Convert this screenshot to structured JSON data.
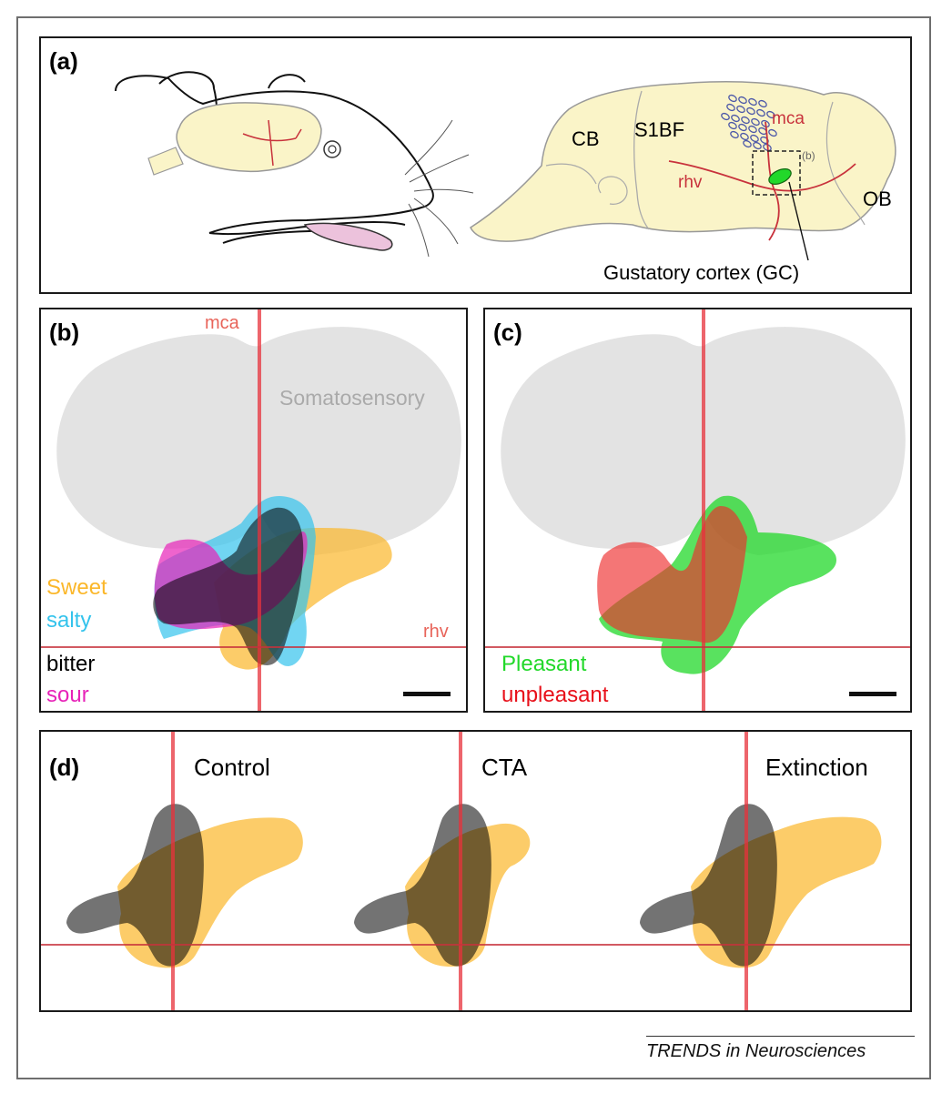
{
  "figure": {
    "credit": "TRENDS in Neurosciences"
  },
  "colors": {
    "sweet": "#fbb72a",
    "salty": "#34c3ec",
    "bitter": "#000000",
    "sour": "#e722b8",
    "pleasant": "#22d82a",
    "unpleasant": "#ee2c2c",
    "vessel": "#e8323c",
    "cortex_fill": "#faf4c8",
    "somatosensory": "#dcdcdc"
  },
  "panel_a": {
    "tag": "(a)",
    "labels": {
      "cb": "CB",
      "s1bf": "S1BF",
      "mca": "mca",
      "rhv": "rhv",
      "ob": "OB",
      "inset": "(b)",
      "gc": "Gustatory cortex (GC)"
    }
  },
  "panel_b": {
    "tag": "(b)",
    "mca": "mca",
    "rhv": "rhv",
    "somatosensory": "Somatosensory",
    "legend": {
      "sweet": "Sweet",
      "salty": "salty",
      "bitter": "bitter",
      "sour": "sour"
    }
  },
  "panel_c": {
    "tag": "(c)",
    "legend": {
      "pleasant": "Pleasant",
      "unpleasant": "unpleasant"
    }
  },
  "panel_d": {
    "tag": "(d)",
    "conditions": [
      "Control",
      "CTA",
      "Extinction"
    ]
  }
}
